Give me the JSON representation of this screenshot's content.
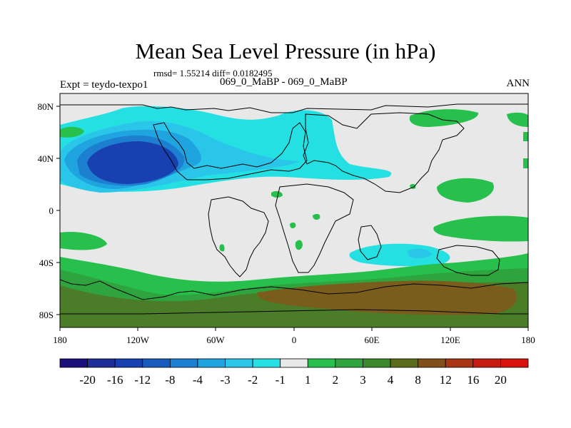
{
  "chart_data": {
    "type": "heatmap",
    "title": "Mean Sea Level Pressure (in hPa)",
    "subtitle": "rmsd= 1.55214  diff= 0.0182495",
    "left_label": "Expt = teydo-texpo1",
    "center_label": "069_0_MaBP - 069_0_MaBP",
    "right_label": "ANN",
    "x_ticks": [
      "180",
      "120W",
      "60W",
      "0",
      "60E",
      "120E",
      "180"
    ],
    "y_ticks": [
      "80N",
      "40N",
      "0",
      "40S",
      "80S"
    ],
    "xlim": [
      -180,
      180
    ],
    "ylim": [
      -90,
      90
    ],
    "colorbar": {
      "labels": [
        "-20",
        "-16",
        "-12",
        "-8",
        "-4",
        "-3",
        "-2",
        "-1",
        "1",
        "2",
        "3",
        "4",
        "8",
        "12",
        "16",
        "20"
      ],
      "colors": [
        "#1b0f7a",
        "#1e2f99",
        "#1840b0",
        "#1a5cbd",
        "#1c7fd0",
        "#20a4df",
        "#2ac6ea",
        "#24e0e2",
        "#e8e8e8",
        "#27c04c",
        "#2ea33e",
        "#3c8a2c",
        "#5b6d1c",
        "#80501a",
        "#a83614",
        "#c41c10",
        "#d8130e"
      ]
    },
    "field_classes": {
      "background": "#e8e8e8",
      "neg_1": "#24e0e2",
      "neg_2": "#2ac6ea",
      "neg_3": "#20a4df",
      "neg_4": "#1c7fd0",
      "neg_8": "#1840b0",
      "pos_2": "#27c04c",
      "pos_3": "#2ea33e",
      "pos_4": "#4b7c28",
      "pos_8": "#7a5d1c"
    }
  }
}
